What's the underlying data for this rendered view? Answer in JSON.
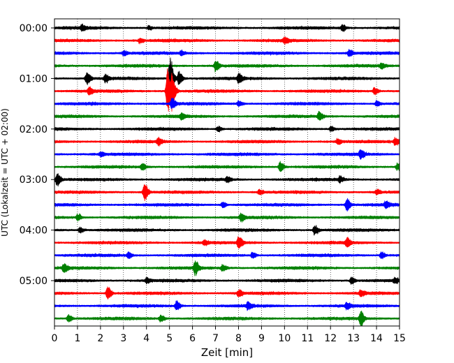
{
  "chart_data": {
    "type": "line",
    "title": "",
    "xlabel": "Zeit  [min]",
    "ylabel": "UTC (Lokalzeit = UTC + 02:00)",
    "xlim": [
      0,
      15
    ],
    "x_ticks": [
      0,
      1,
      2,
      3,
      4,
      5,
      6,
      7,
      8,
      9,
      10,
      11,
      12,
      13,
      14,
      15
    ],
    "grid": "vertical dotted lines at each minute",
    "y_tick_labels": [
      "00:00",
      "01:00",
      "02:00",
      "03:00",
      "04:00",
      "05:00"
    ],
    "line_colors": [
      "#000000",
      "#ff0000",
      "#0000ff",
      "#008000"
    ],
    "series": [
      {
        "start": "00:00",
        "color": "#000000",
        "events": [
          {
            "t": 1.2,
            "amp": 0.35
          },
          {
            "t": 4.1,
            "amp": 0.25
          },
          {
            "t": 12.5,
            "amp": 0.45
          }
        ]
      },
      {
        "start": "00:15",
        "color": "#ff0000",
        "events": [
          {
            "t": 3.7,
            "amp": 0.3
          },
          {
            "t": 10.0,
            "amp": 0.35
          }
        ]
      },
      {
        "start": "00:30",
        "color": "#0000ff",
        "events": [
          {
            "t": 3.0,
            "amp": 0.3
          },
          {
            "t": 5.5,
            "amp": 0.3
          },
          {
            "t": 12.8,
            "amp": 0.45
          }
        ]
      },
      {
        "start": "00:45",
        "color": "#008000",
        "events": [
          {
            "t": 7.0,
            "amp": 0.7
          },
          {
            "t": 14.2,
            "amp": 0.3
          }
        ]
      },
      {
        "start": "01:00",
        "color": "#000000",
        "events": [
          {
            "t": 1.4,
            "amp": 0.8
          },
          {
            "t": 2.2,
            "amp": 0.5
          },
          {
            "t": 5.0,
            "amp": 3.0
          },
          {
            "t": 5.4,
            "amp": 0.9
          },
          {
            "t": 8.0,
            "amp": 0.6
          }
        ]
      },
      {
        "start": "01:15",
        "color": "#ff0000",
        "events": [
          {
            "t": 1.5,
            "amp": 0.45
          },
          {
            "t": 4.9,
            "amp": 2.8
          },
          {
            "t": 5.1,
            "amp": 1.8
          },
          {
            "t": 13.9,
            "amp": 0.45
          }
        ]
      },
      {
        "start": "01:30",
        "color": "#0000ff",
        "events": [
          {
            "t": 5.1,
            "amp": 0.7
          },
          {
            "t": 8.0,
            "amp": 0.35
          },
          {
            "t": 14.0,
            "amp": 0.35
          }
        ]
      },
      {
        "start": "01:45",
        "color": "#008000",
        "events": [
          {
            "t": 5.5,
            "amp": 0.35
          },
          {
            "t": 11.5,
            "amp": 0.6
          }
        ]
      },
      {
        "start": "02:00",
        "color": "#000000",
        "events": [
          {
            "t": 7.1,
            "amp": 0.35
          },
          {
            "t": 12.0,
            "amp": 0.3
          }
        ]
      },
      {
        "start": "02:15",
        "color": "#ff0000",
        "events": [
          {
            "t": 4.5,
            "amp": 0.45
          },
          {
            "t": 12.3,
            "amp": 0.35
          },
          {
            "t": 14.8,
            "amp": 0.45
          }
        ]
      },
      {
        "start": "02:30",
        "color": "#0000ff",
        "events": [
          {
            "t": 2.0,
            "amp": 0.35
          },
          {
            "t": 13.3,
            "amp": 0.6
          }
        ]
      },
      {
        "start": "02:45",
        "color": "#008000",
        "events": [
          {
            "t": 3.8,
            "amp": 0.45
          },
          {
            "t": 9.8,
            "amp": 0.7
          },
          {
            "t": 14.9,
            "amp": 0.45
          }
        ]
      },
      {
        "start": "03:00",
        "color": "#000000",
        "events": [
          {
            "t": 0.1,
            "amp": 0.8
          },
          {
            "t": 7.5,
            "amp": 0.35
          },
          {
            "t": 12.4,
            "amp": 0.4
          }
        ]
      },
      {
        "start": "03:15",
        "color": "#ff0000",
        "events": [
          {
            "t": 3.9,
            "amp": 1.1
          },
          {
            "t": 8.9,
            "amp": 0.35
          },
          {
            "t": 14.0,
            "amp": 0.3
          }
        ]
      },
      {
        "start": "03:30",
        "color": "#0000ff",
        "events": [
          {
            "t": 7.3,
            "amp": 0.4
          },
          {
            "t": 12.7,
            "amp": 0.8
          },
          {
            "t": 14.4,
            "amp": 0.35
          }
        ]
      },
      {
        "start": "03:45",
        "color": "#008000",
        "events": [
          {
            "t": 1.0,
            "amp": 0.45
          },
          {
            "t": 8.1,
            "amp": 0.5
          }
        ]
      },
      {
        "start": "04:00",
        "color": "#000000",
        "events": [
          {
            "t": 1.1,
            "amp": 0.35
          },
          {
            "t": 11.3,
            "amp": 0.6
          }
        ]
      },
      {
        "start": "04:15",
        "color": "#ff0000",
        "events": [
          {
            "t": 6.5,
            "amp": 0.35
          },
          {
            "t": 8.0,
            "amp": 0.8
          },
          {
            "t": 12.7,
            "amp": 0.6
          }
        ]
      },
      {
        "start": "04:30",
        "color": "#0000ff",
        "events": [
          {
            "t": 3.2,
            "amp": 0.35
          },
          {
            "t": 8.6,
            "amp": 0.4
          },
          {
            "t": 14.2,
            "amp": 0.45
          }
        ]
      },
      {
        "start": "04:45",
        "color": "#008000",
        "events": [
          {
            "t": 0.4,
            "amp": 0.6
          },
          {
            "t": 6.1,
            "amp": 0.9
          },
          {
            "t": 7.3,
            "amp": 0.45
          }
        ]
      },
      {
        "start": "05:00",
        "color": "#000000",
        "events": [
          {
            "t": 4.0,
            "amp": 0.35
          },
          {
            "t": 12.9,
            "amp": 0.45
          },
          {
            "t": 14.8,
            "amp": 0.3
          }
        ]
      },
      {
        "start": "05:15",
        "color": "#ff0000",
        "events": [
          {
            "t": 2.3,
            "amp": 0.9
          },
          {
            "t": 8.0,
            "amp": 0.45
          },
          {
            "t": 13.3,
            "amp": 0.35
          }
        ]
      },
      {
        "start": "05:30",
        "color": "#0000ff",
        "events": [
          {
            "t": 5.3,
            "amp": 0.6
          },
          {
            "t": 8.4,
            "amp": 0.45
          },
          {
            "t": 12.7,
            "amp": 0.4
          }
        ]
      },
      {
        "start": "05:45",
        "color": "#008000",
        "events": [
          {
            "t": 0.6,
            "amp": 0.45
          },
          {
            "t": 4.6,
            "amp": 0.45
          },
          {
            "t": 13.3,
            "amp": 0.9
          }
        ]
      }
    ]
  }
}
